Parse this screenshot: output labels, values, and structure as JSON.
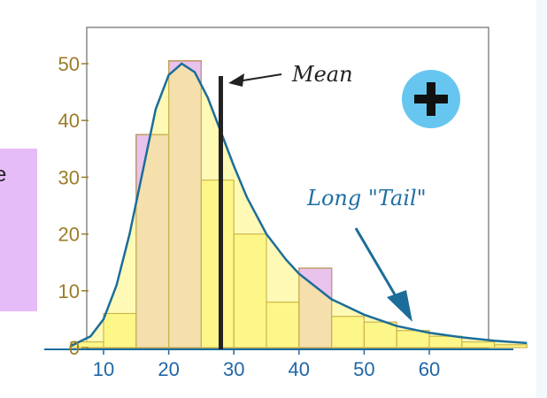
{
  "left_panel": {
    "text": "e"
  },
  "chart_data": {
    "type": "bar",
    "x_tick_labels": [
      "10",
      "20",
      "30",
      "40",
      "50",
      "60"
    ],
    "y_tick_labels": [
      "0",
      "10",
      "20",
      "30",
      "40",
      "50"
    ],
    "xlim": [
      5,
      75
    ],
    "ylim": [
      0,
      55
    ],
    "bin_width": 5,
    "bins_start": [
      5,
      10,
      15,
      20,
      25,
      30,
      35,
      40,
      45,
      50,
      55,
      60,
      65,
      70
    ],
    "series": [
      {
        "values": [
          1,
          6,
          37.5,
          50.5,
          29.5,
          20,
          8,
          14,
          5.5,
          4.5,
          3,
          2,
          1,
          0.5
        ]
      }
    ],
    "highlight_bins": [
      {
        "x0": 15,
        "x1": 20,
        "value": 37.5
      },
      {
        "x0": 20,
        "x1": 25,
        "value": 50.5
      },
      {
        "x0": 40,
        "x1": 45,
        "value": 14
      }
    ],
    "curve": [
      [
        5,
        0.3
      ],
      [
        8,
        2
      ],
      [
        10,
        5
      ],
      [
        12,
        11
      ],
      [
        14,
        20
      ],
      [
        16,
        31
      ],
      [
        18,
        42
      ],
      [
        20,
        48
      ],
      [
        22,
        50
      ],
      [
        24,
        48.5
      ],
      [
        26,
        44
      ],
      [
        28,
        38
      ],
      [
        30,
        32
      ],
      [
        32,
        26.5
      ],
      [
        35,
        20
      ],
      [
        38,
        15.5
      ],
      [
        40,
        13
      ],
      [
        45,
        8.5
      ],
      [
        50,
        5.8
      ],
      [
        55,
        3.8
      ],
      [
        60,
        2.6
      ],
      [
        65,
        1.8
      ],
      [
        70,
        1.2
      ],
      [
        75,
        0.8
      ]
    ],
    "mean": 28,
    "mean_label": "Mean",
    "tail_label": "Long \"Tail\"",
    "colors": {
      "bar_fill": "#fdf59a",
      "bar_stroke": "#c9b44a",
      "highlight_fill": "#e9c3ec",
      "highlight_stroke": "#8a3a8a",
      "curve": "#1c6d99",
      "curve_fill": "#fdf57a",
      "x_ticks": "#2166a8",
      "y_ticks": "#9c7c28",
      "mean_line": "#222222",
      "plus_circle": "#67c6f0"
    },
    "grid": false,
    "legend": "none"
  }
}
